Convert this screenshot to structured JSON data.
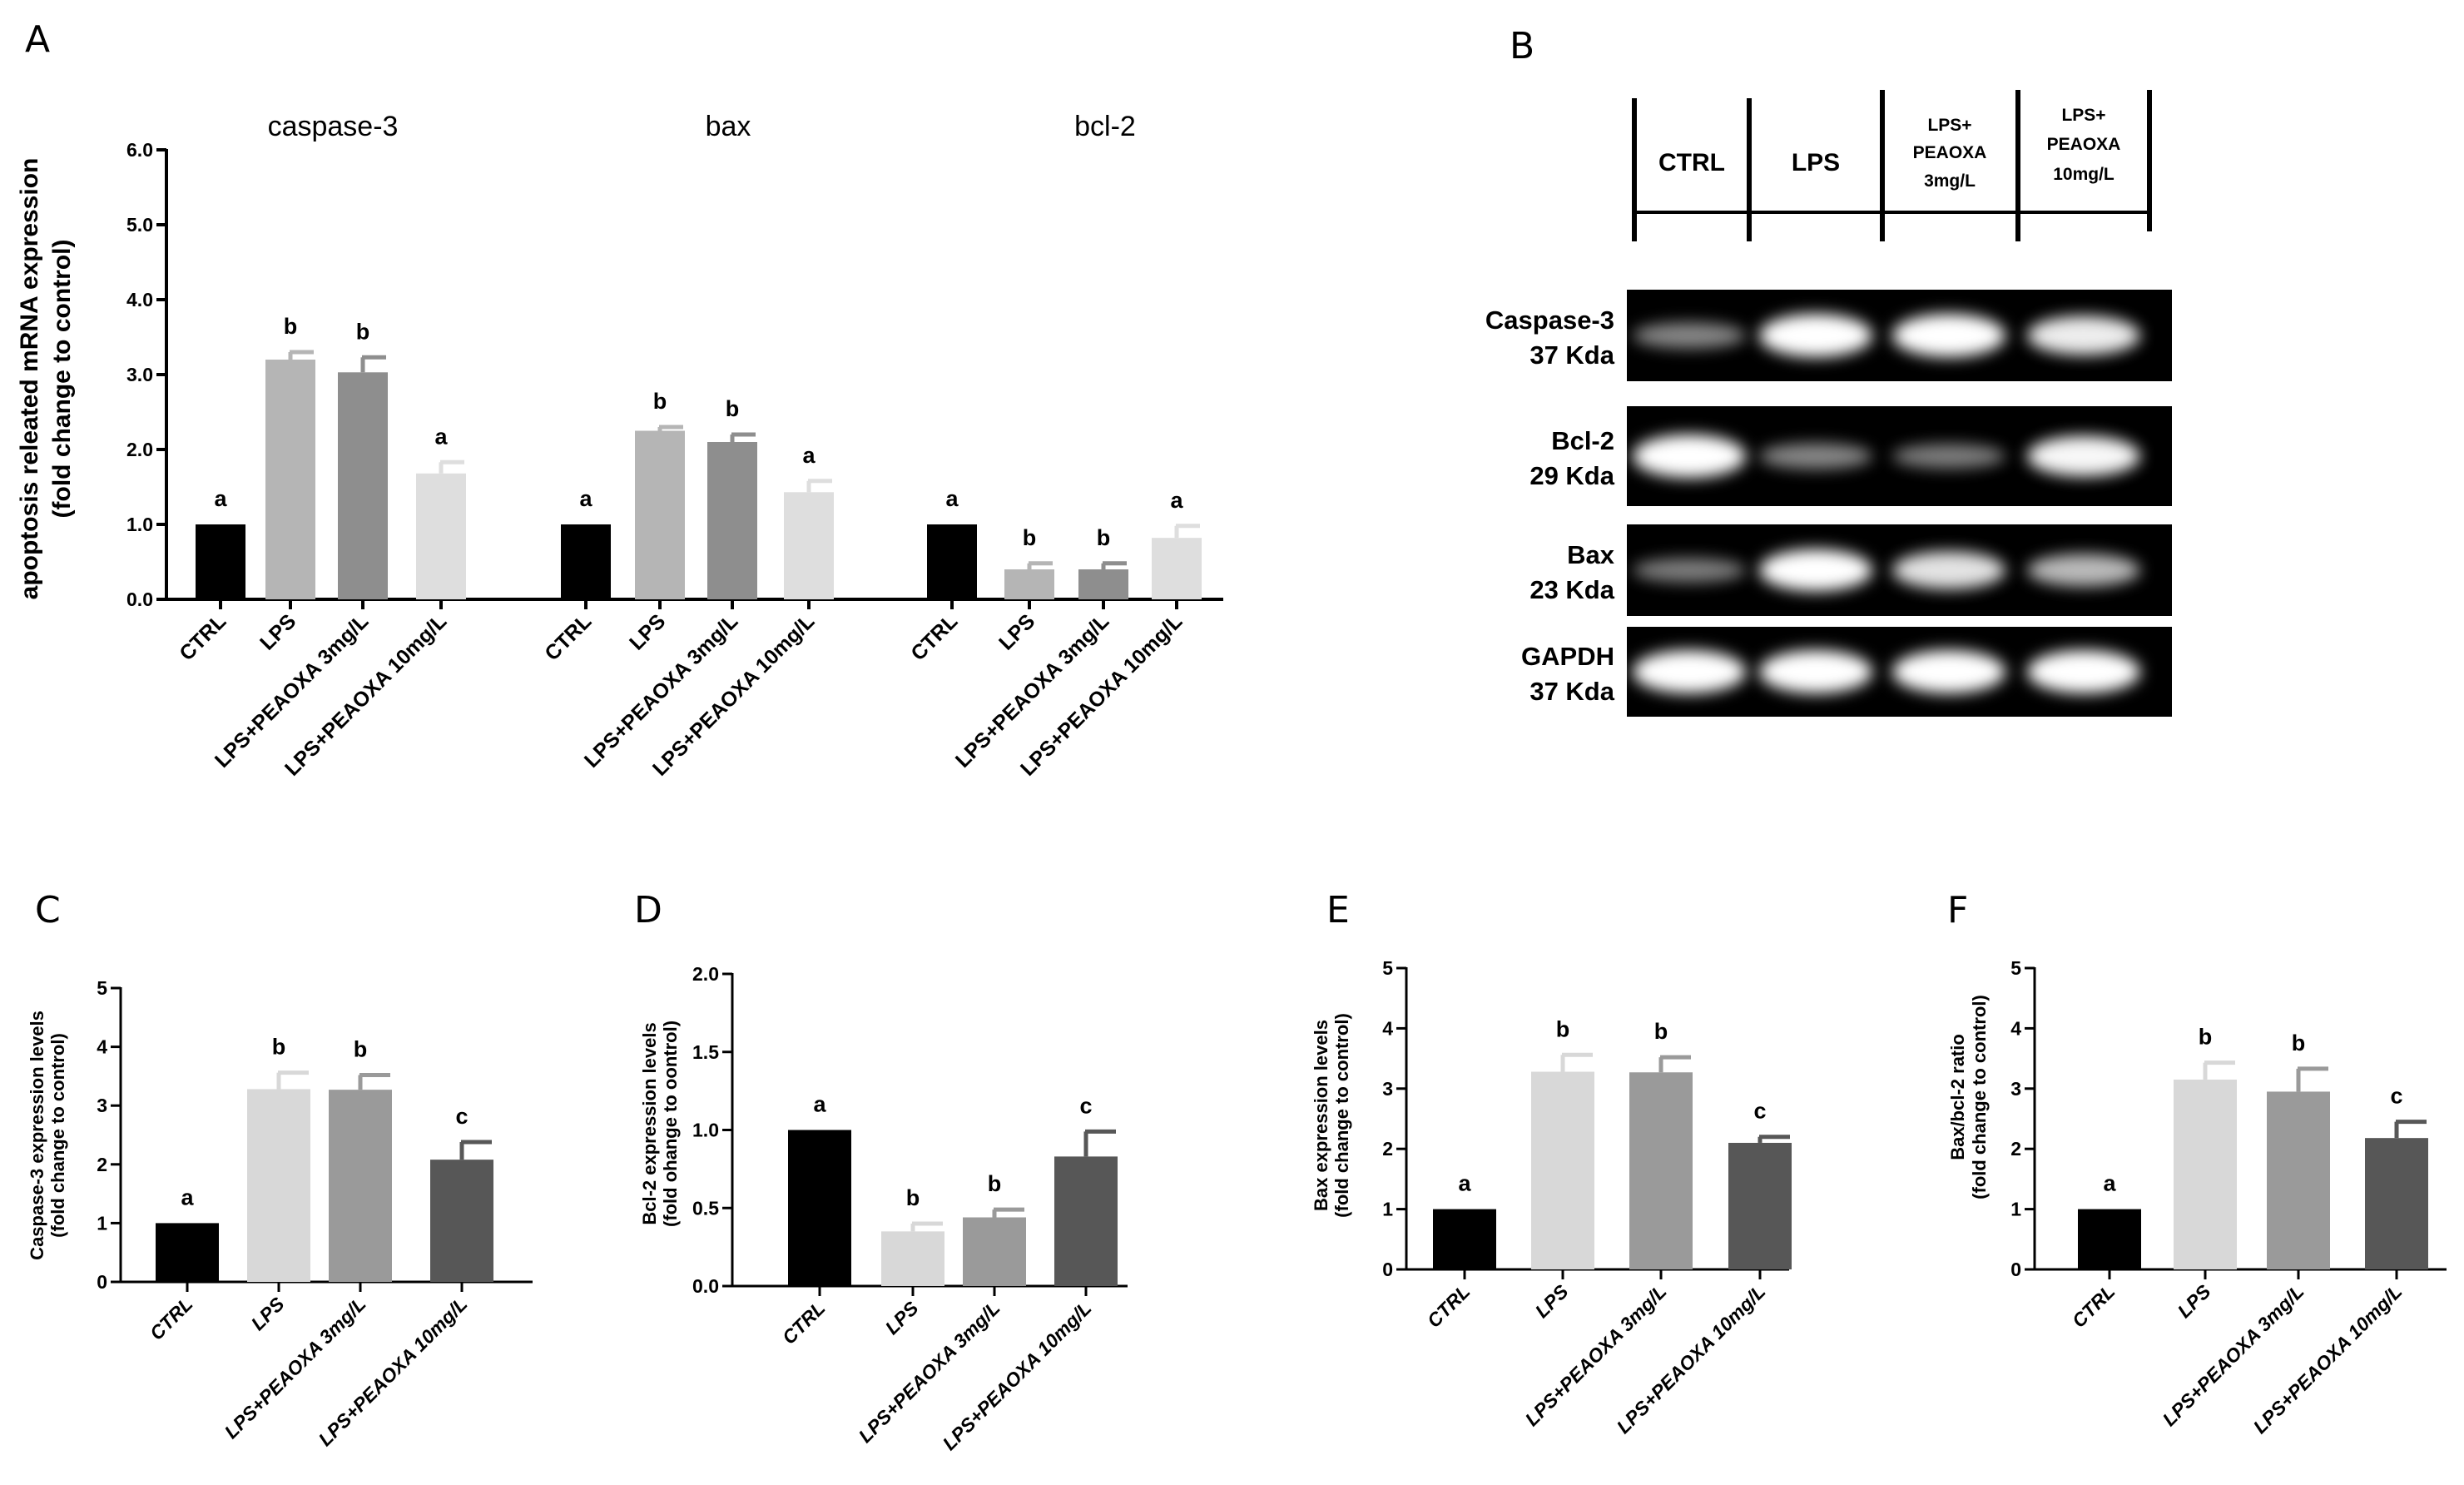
{
  "panels": {
    "A": "A",
    "B": "B",
    "C": "C",
    "D": "D",
    "E": "E",
    "F": "F"
  },
  "colors": {
    "ctrl": "#000000",
    "lps": "#b5b5b5",
    "lps3": "#8e8e8e",
    "lps10": "#dedede",
    "lps_cf": "#d8d8d8",
    "lps3_cf": "#9a9a9a",
    "lps10_cf": "#575757"
  },
  "chart_data": [
    {
      "id": "A",
      "type": "bar",
      "ylabel_line1": "apoptosis releated mRNA expression",
      "ylabel_line2": "(fold change to control)",
      "ylim": [
        0,
        6
      ],
      "yticks": [
        "0.0",
        "1.0",
        "2.0",
        "3.0",
        "4.0",
        "5.0",
        "6.0"
      ],
      "categories": [
        "CTRL",
        "LPS",
        "LPS+PEAOXA 3mg/L",
        "LPS+PEAOXA 10mg/L"
      ],
      "groups": [
        {
          "title": "caspase-3",
          "values": [
            1.0,
            3.2,
            3.03,
            1.68
          ],
          "errors": [
            0,
            0.1,
            0.2,
            0.15
          ],
          "letters": [
            "a",
            "b",
            "b",
            "a"
          ]
        },
        {
          "title": "bax",
          "values": [
            1.0,
            2.25,
            2.1,
            1.43
          ],
          "errors": [
            0,
            0.05,
            0.1,
            0.15
          ],
          "letters": [
            "a",
            "b",
            "b",
            "a"
          ]
        },
        {
          "title": "bcl-2",
          "values": [
            1.0,
            0.4,
            0.4,
            0.82
          ],
          "errors": [
            0,
            0.08,
            0.08,
            0.16
          ],
          "letters": [
            "a",
            "b",
            "b",
            "a"
          ]
        }
      ]
    },
    {
      "id": "C",
      "type": "bar",
      "ylabel_line1": "Caspase-3 expression levels",
      "ylabel_line2": "(fold change to control)",
      "ylim": [
        0,
        5
      ],
      "yticks": [
        "0",
        "1",
        "2",
        "3",
        "4",
        "5"
      ],
      "categories": [
        "CTRL",
        "LPS",
        "LPS+PEAOXA 3mg/L",
        "LPS+PEAOXA 10mg/L"
      ],
      "values": [
        1.0,
        3.28,
        3.27,
        2.08
      ],
      "errors": [
        0,
        0.28,
        0.25,
        0.3
      ],
      "letters": [
        "a",
        "b",
        "b",
        "c"
      ]
    },
    {
      "id": "D",
      "type": "bar",
      "ylabel_line1": "Bcl-2 expression levels",
      "ylabel_line2": "(fold ohange to oontrol)",
      "ylim": [
        0,
        2
      ],
      "yticks": [
        "0.0",
        "0.5",
        "1.0",
        "1.5",
        "2.0"
      ],
      "categories": [
        "CTRL",
        "LPS",
        "LPS+PEAOXA 3mg/L",
        "LPS+PEAOXA 10mg/L"
      ],
      "values": [
        1.0,
        0.35,
        0.44,
        0.83
      ],
      "errors": [
        0,
        0.05,
        0.05,
        0.16
      ],
      "letters": [
        "a",
        "b",
        "b",
        "c"
      ]
    },
    {
      "id": "E",
      "type": "bar",
      "ylabel_line1": "Bax expression levels",
      "ylabel_line2": "(fold change to control)",
      "ylim": [
        0,
        5
      ],
      "yticks": [
        "0",
        "1",
        "2",
        "3",
        "4",
        "5"
      ],
      "categories": [
        "CTRL",
        "LPS",
        "LPS+PEAOXA 3mg/L",
        "LPS+PEAOXA 10mg/L"
      ],
      "values": [
        1.0,
        3.28,
        3.27,
        2.1
      ],
      "errors": [
        0,
        0.28,
        0.25,
        0.1
      ],
      "letters": [
        "a",
        "b",
        "b",
        "c"
      ]
    },
    {
      "id": "F",
      "type": "bar",
      "ylabel_line1": "Bax/bcl-2 ratio",
      "ylabel_line2": "(fold change to control)",
      "ylim": [
        0,
        5
      ],
      "yticks": [
        "0",
        "1",
        "2",
        "3",
        "4",
        "5"
      ],
      "categories": [
        "CTRL",
        "LPS",
        "LPS+PEAOXA 3mg/L",
        "LPS+PEAOXA 10mg/L"
      ],
      "values": [
        1.0,
        3.15,
        2.95,
        2.18
      ],
      "errors": [
        0,
        0.28,
        0.38,
        0.27
      ],
      "letters": [
        "a",
        "b",
        "b",
        "c"
      ]
    }
  ],
  "western_blot": {
    "lanes": [
      "CTRL",
      "LPS"
    ],
    "lane3_line1": "LPS+",
    "lane3_line2": "PEAOXA",
    "lane3_line3": "3mg/L",
    "lane4_line1": "LPS+",
    "lane4_line2": "PEAOXA",
    "lane4_line3": "10mg/L",
    "rows": [
      {
        "name": "Caspase-3",
        "size": "37 Kda",
        "intensity": [
          0.35,
          1.0,
          1.0,
          0.85
        ]
      },
      {
        "name": "Bcl-2",
        "size": "29 Kda",
        "intensity": [
          1.0,
          0.35,
          0.3,
          0.9
        ]
      },
      {
        "name": "Bax",
        "size": "23 Kda",
        "intensity": [
          0.3,
          0.95,
          0.8,
          0.6
        ]
      },
      {
        "name": "GAPDH",
        "size": "37 Kda",
        "intensity": [
          1.0,
          1.0,
          1.0,
          1.0
        ]
      }
    ]
  }
}
